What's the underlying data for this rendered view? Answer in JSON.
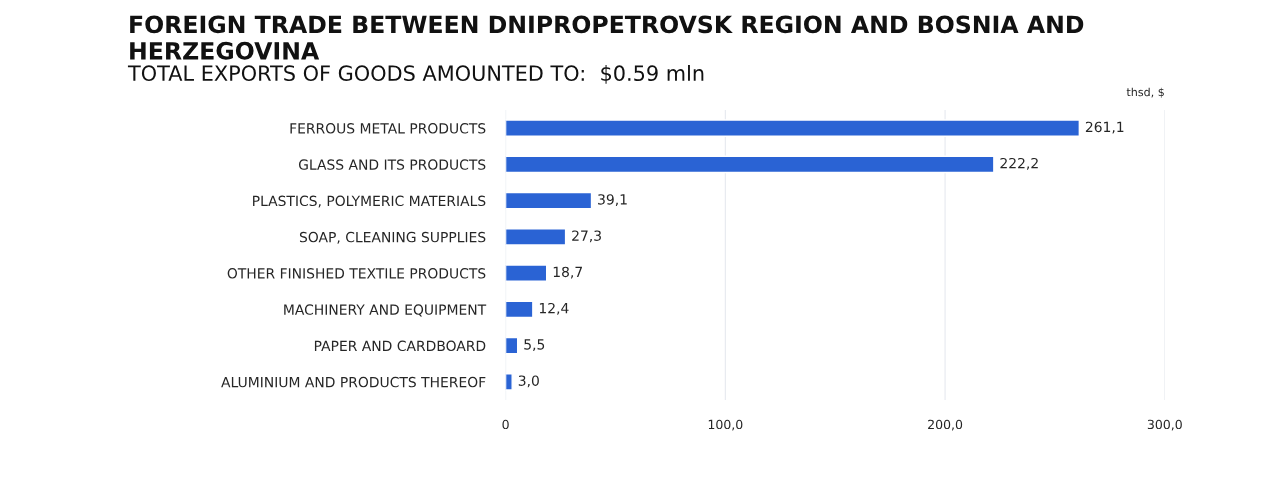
{
  "chart_data": {
    "type": "bar",
    "orientation": "horizontal",
    "title": "FOREIGN TRADE BETWEEN DNIPROPETROVSK REGION AND BOSNIA AND HERZEGOVINA",
    "subtitle": "TOTAL EXPORTS OF GOODS AMOUNTED TO:  $0.59 mln",
    "xlabel": "thsd, $",
    "categories": [
      "FERROUS METAL PRODUCTS",
      "GLASS AND ITS PRODUCTS",
      "PLASTICS, POLYMERIC MATERIALS",
      "SOAP, CLEANING SUPPLIES",
      "OTHER FINISHED TEXTILE PRODUCTS",
      "MACHINERY AND EQUIPMENT",
      "PAPER AND CARDBOARD",
      "ALUMINIUM AND PRODUCTS THEREOF"
    ],
    "values": [
      261.1,
      222.2,
      39.1,
      27.3,
      18.7,
      12.4,
      5.5,
      3.0
    ],
    "value_labels": [
      "261,1",
      "222,2",
      "39,1",
      "27,3",
      "18,7",
      "12,4",
      "5,5",
      "3,0"
    ],
    "color": "#2a63d4",
    "xlim": [
      0,
      300
    ],
    "xticks": [
      0,
      {
        "value": 100,
        "label": "100,0"
      },
      {
        "value": 200,
        "label": "200,0"
      },
      {
        "value": 300,
        "label": "300,0"
      }
    ],
    "grid": "x"
  }
}
